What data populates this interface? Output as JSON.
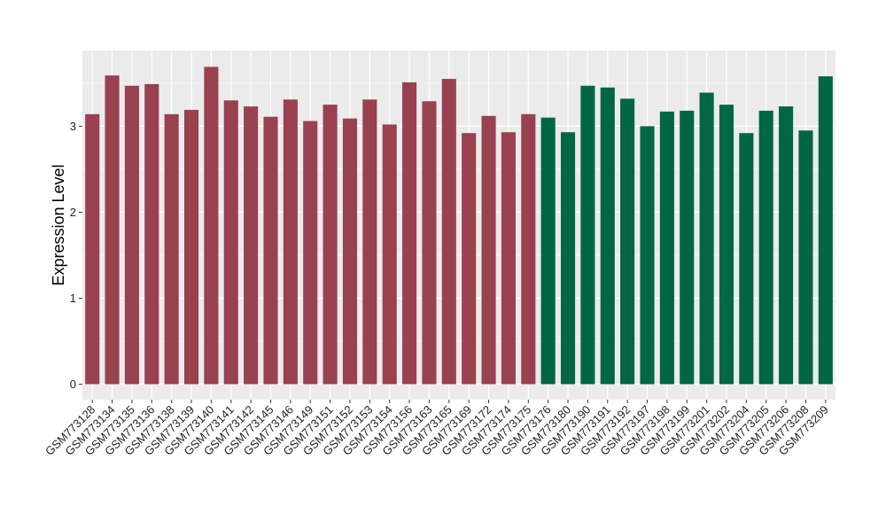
{
  "chart_data": {
    "type": "bar",
    "ylabel": "Expression Level",
    "xlabel": "",
    "ylim": [
      -0.18,
      3.88
    ],
    "yticks": [
      0,
      1,
      2,
      3
    ],
    "grid": true,
    "legend": "none",
    "colors": {
      "group1": "#9a4150",
      "group2": "#006644",
      "panel": "#ebebeb",
      "grid": "#ffffff"
    },
    "categories": [
      "GSM773128",
      "GSM773134",
      "GSM773135",
      "GSM773136",
      "GSM773138",
      "GSM773139",
      "GSM773140",
      "GSM773141",
      "GSM773142",
      "GSM773145",
      "GSM773146",
      "GSM773149",
      "GSM773151",
      "GSM773152",
      "GSM773153",
      "GSM773154",
      "GSM773156",
      "GSM773163",
      "GSM773165",
      "GSM773169",
      "GSM773172",
      "GSM773174",
      "GSM773175",
      "GSM773176",
      "GSM773180",
      "GSM773190",
      "GSM773191",
      "GSM773192",
      "GSM773197",
      "GSM773198",
      "GSM773199",
      "GSM773201",
      "GSM773202",
      "GSM773204",
      "GSM773205",
      "GSM773206",
      "GSM773208",
      "GSM773209"
    ],
    "values": [
      3.14,
      3.59,
      3.47,
      3.49,
      3.14,
      3.19,
      3.69,
      3.3,
      3.23,
      3.11,
      3.31,
      3.06,
      3.25,
      3.09,
      3.31,
      3.02,
      3.51,
      3.29,
      3.55,
      2.92,
      3.12,
      2.93,
      3.14,
      3.1,
      2.93,
      3.47,
      3.45,
      3.32,
      3.0,
      3.17,
      3.18,
      3.39,
      3.25,
      2.92,
      3.18,
      3.23,
      2.95,
      3.58
    ],
    "groups": [
      1,
      1,
      1,
      1,
      1,
      1,
      1,
      1,
      1,
      1,
      1,
      1,
      1,
      1,
      1,
      1,
      1,
      1,
      1,
      1,
      1,
      1,
      1,
      2,
      2,
      2,
      2,
      2,
      2,
      2,
      2,
      2,
      2,
      2,
      2,
      2,
      2,
      2
    ]
  }
}
